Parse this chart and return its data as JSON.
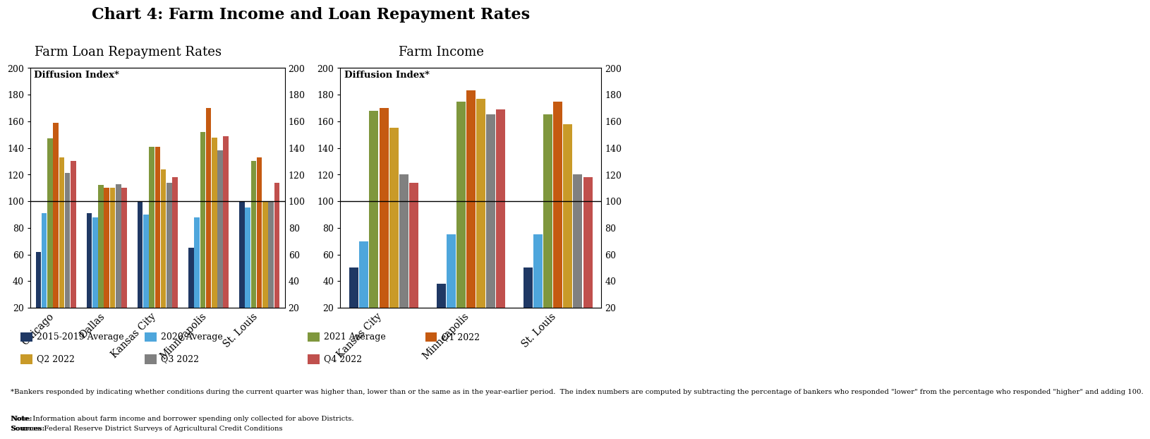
{
  "title": "Chart 4: Farm Income and Loan Repayment Rates",
  "left_title": "Farm Loan Repayment Rates",
  "right_title": "Farm Income",
  "ylim": [
    20,
    200
  ],
  "yticks": [
    20,
    40,
    60,
    80,
    100,
    120,
    140,
    160,
    180,
    200
  ],
  "baseline": 100,
  "series_labels": [
    "2015-2019 Average",
    "2020 Average",
    "2021 Average",
    "Q1 2022",
    "Q2 2022",
    "Q3 2022",
    "Q4 2022"
  ],
  "series_colors": [
    "#1f3864",
    "#4ea6dc",
    "#7f973d",
    "#c55a11",
    "#c99a28",
    "#808080",
    "#c0504d"
  ],
  "left_districts": [
    "Chicago",
    "Dallas",
    "Kansas City",
    "Minneapolis",
    "St. Louis"
  ],
  "left_data": [
    [
      62,
      91,
      147,
      159,
      133,
      121,
      130
    ],
    [
      91,
      88,
      112,
      110,
      110,
      113,
      110
    ],
    [
      100,
      90,
      141,
      141,
      124,
      114,
      118
    ],
    [
      65,
      88,
      152,
      170,
      148,
      138,
      149
    ],
    [
      100,
      95,
      130,
      133,
      100,
      100,
      114
    ]
  ],
  "right_districts": [
    "Kansas City",
    "Minneapolis",
    "St. Louis"
  ],
  "right_data": [
    [
      50,
      70,
      168,
      170,
      155,
      120,
      114
    ],
    [
      38,
      75,
      175,
      183,
      177,
      165,
      169
    ],
    [
      50,
      75,
      165,
      175,
      158,
      120,
      118
    ]
  ],
  "legend_row1": [
    "2015-2019 Average",
    "2020 Average",
    "2021 Average",
    "Q1 2022"
  ],
  "legend_row2": [
    "Q2 2022",
    "Q3 2022",
    "Q4 2022"
  ],
  "footnote_star": "*Bankers responded by indicating whether conditions during the current quarter was higher than, lower than or the same as in the year-earlier period.  The index numbers are computed by subtracting the percentage of bankers who responded \"lower\" from the percentage who responded \"higher\" and adding 100.",
  "footnote_note": "Note: Information about farm income and borrower spending only collected for above Districts.",
  "footnote_sources": "Sources: Federal Reserve District Surveys of Agricultural Credit Conditions"
}
